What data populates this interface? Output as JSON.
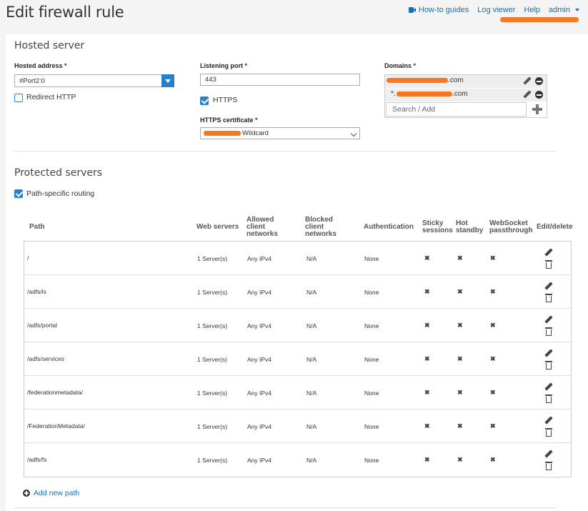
{
  "header": {
    "title": "Edit firewall rule",
    "nav": {
      "howto": "How-to guides",
      "logviewer": "Log viewer",
      "help": "Help",
      "user": "admin"
    }
  },
  "hosted": {
    "section_title": "Hosted server",
    "address_label": "Hosted address",
    "address_value": "#Port2:0",
    "redirect_http_label": "Redirect HTTP",
    "redirect_http_checked": false,
    "port_label": "Listening port",
    "port_value": "443",
    "https_label": "HTTPS",
    "https_checked": true,
    "cert_label": "HTTPS certificate",
    "cert_value": "Wildcard",
    "domains_label": "Domains",
    "domains": [
      {
        "suffix": ".com"
      },
      {
        "prefix": "*.",
        "suffix": ".com"
      }
    ],
    "domain_search_placeholder": "Search / Add",
    "required_mark": "*"
  },
  "protected": {
    "section_title": "Protected servers",
    "path_routing_label": "Path-specific routing",
    "path_routing_checked": true,
    "columns": {
      "path": "Path",
      "web_servers": "Web servers",
      "allowed": "Allowed client networks",
      "blocked": "Blocked client networks",
      "auth": "Authentication",
      "sticky": "Sticky sessions",
      "hot": "Hot standby",
      "websocket": "WebSocket passthrough",
      "edit": "Edit/delete"
    },
    "rows": [
      {
        "path": "/",
        "web_servers": "1 Server(s)",
        "allowed": "Any IPv4",
        "blocked": "N/A",
        "auth": "None",
        "sticky": "✖",
        "hot": "✖",
        "websocket": "✖"
      },
      {
        "path": "/adfs/ls",
        "web_servers": "1 Server(s)",
        "allowed": "Any IPv4",
        "blocked": "N/A",
        "auth": "None",
        "sticky": "✖",
        "hot": "✖",
        "websocket": "✖"
      },
      {
        "path": "/adfs/portal",
        "web_servers": "1 Server(s)",
        "allowed": "Any IPv4",
        "blocked": "N/A",
        "auth": "None",
        "sticky": "✖",
        "hot": "✖",
        "websocket": "✖"
      },
      {
        "path": "/adfs/services",
        "web_servers": "1 Server(s)",
        "allowed": "Any IPv4",
        "blocked": "N/A",
        "auth": "None",
        "sticky": "✖",
        "hot": "✖",
        "websocket": "✖"
      },
      {
        "path": "/federationmetadata/",
        "web_servers": "1 Server(s)",
        "allowed": "Any IPv4",
        "blocked": "N/A",
        "auth": "None",
        "sticky": "✖",
        "hot": "✖",
        "websocket": "✖"
      },
      {
        "path": "/FederationMetadata/",
        "web_servers": "1 Server(s)",
        "allowed": "Any IPv4",
        "blocked": "N/A",
        "auth": "None",
        "sticky": "✖",
        "hot": "✖",
        "websocket": "✖"
      },
      {
        "path": "/adfs/fs",
        "web_servers": "1 Server(s)",
        "allowed": "Any IPv4",
        "blocked": "N/A",
        "auth": "None",
        "sticky": "✖",
        "hot": "✖",
        "websocket": "✖"
      }
    ],
    "add_path_label": "Add new path"
  },
  "colors": {
    "accent": "#2a80c6",
    "link": "#1a6fb0",
    "redaction": "#f47920"
  }
}
